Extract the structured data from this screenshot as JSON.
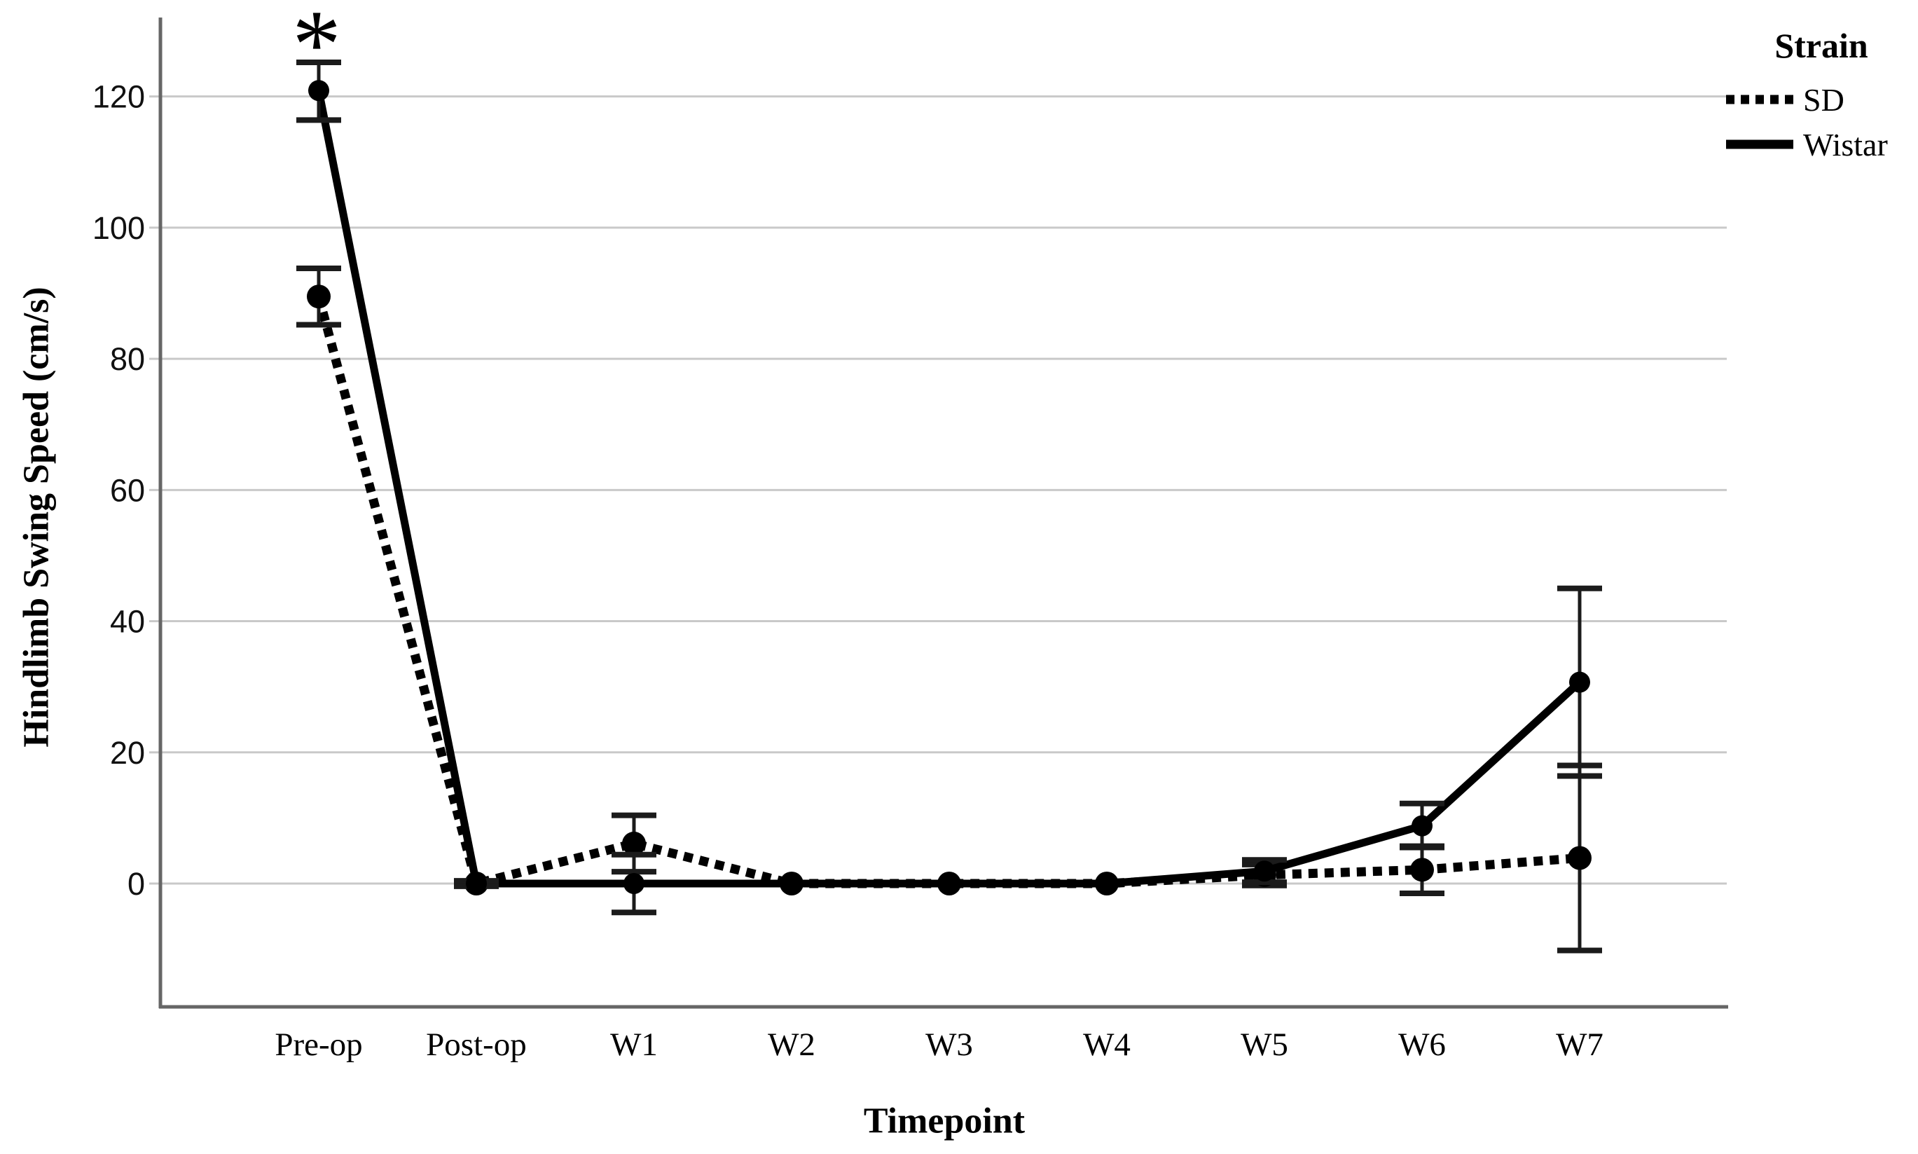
{
  "legend": {
    "title": "Strain",
    "items": [
      {
        "name": "SD",
        "style": "dotted"
      },
      {
        "name": "Wistar",
        "style": "solid"
      }
    ]
  },
  "chart_data": {
    "type": "line",
    "title": "",
    "xlabel": "Timepoint",
    "ylabel": "Hindlimb Swing Speed (cm/s)",
    "categories": [
      "Pre-op",
      "Post-op",
      "W1",
      "W2",
      "W3",
      "W4",
      "W5",
      "W6",
      "W7"
    ],
    "yticks": [
      0,
      20,
      40,
      60,
      80,
      100,
      120
    ],
    "ylim": [
      -18.5,
      132
    ],
    "grid": true,
    "legend_position": "top-right",
    "colors": {
      "series": "#000000",
      "gridline": "#c9c9c9",
      "axis": "#666666",
      "error_bar": "#1b1b1b"
    },
    "annotations": [
      {
        "text": "*",
        "category": "Pre-op",
        "series": "Wistar"
      }
    ],
    "series": [
      {
        "name": "SD",
        "line_style": "dotted",
        "values": [
          89.5,
          0,
          6.1,
          0,
          0,
          0,
          1.3,
          2.1,
          3.9
        ],
        "error_low": [
          85.2,
          -0.4,
          1.8,
          null,
          null,
          null,
          -0.3,
          -1.5,
          -10.2
        ],
        "error_high": [
          93.8,
          0.4,
          10.4,
          null,
          null,
          null,
          2.9,
          5.7,
          18.0
        ]
      },
      {
        "name": "Wistar",
        "line_style": "solid",
        "values": [
          120.9,
          0,
          0,
          0,
          0,
          0,
          1.9,
          8.8,
          30.7
        ],
        "error_low": [
          116.4,
          -0.4,
          -4.4,
          null,
          null,
          null,
          0.2,
          5.5,
          16.4
        ],
        "error_high": [
          125.2,
          0.4,
          4.4,
          null,
          null,
          null,
          3.6,
          12.2,
          45.0
        ]
      }
    ]
  }
}
